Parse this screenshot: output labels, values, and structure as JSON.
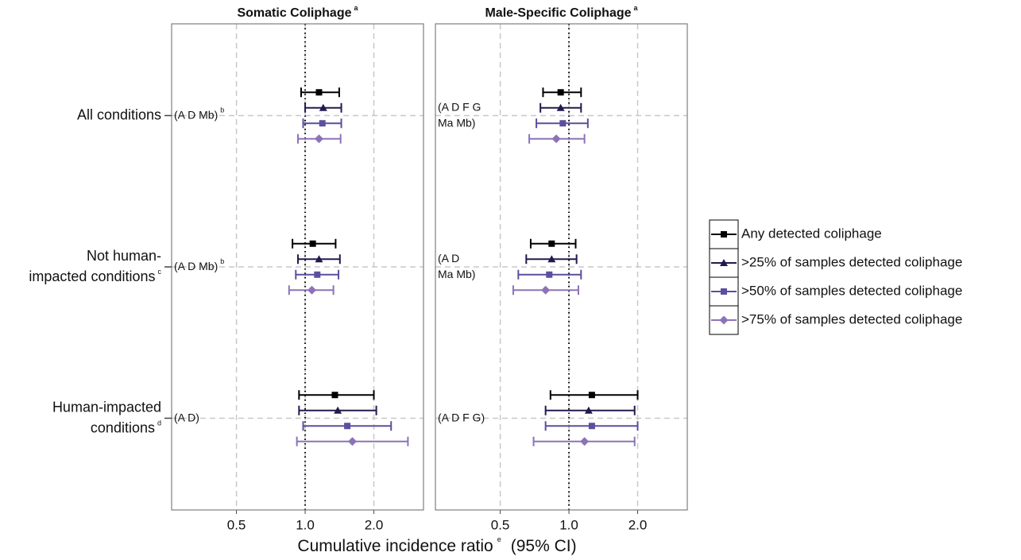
{
  "chart_data": {
    "type": "forest",
    "xscale": "log",
    "xlim": [
      0.26,
      3.3
    ],
    "xticks": [
      0.5,
      {
        "value": 1,
        "label": "1.0"
      },
      {
        "value": 2,
        "label": "2.0"
      }
    ],
    "refline": 1,
    "grid": true,
    "xlabel": "Cumulative incidence ratio",
    "xlabel_sup": "e",
    "xlabel_suffix": "(95% CI)",
    "legend_position": "right",
    "categories": [
      {
        "lines": [
          "All conditions"
        ]
      },
      {
        "lines": [
          "Not human-",
          "impacted conditions"
        ],
        "sup": "c"
      },
      {
        "lines": [
          "Human-impacted",
          "conditions"
        ],
        "sup": "d"
      }
    ],
    "legend": [
      {
        "name": "Any detected coliphage",
        "color": "#000000",
        "marker": "square"
      },
      {
        "name": ">25% of samples detected coliphage",
        "color": "#231a4e",
        "marker": "triangle"
      },
      {
        "name": ">50% of samples detected coliphage",
        "color": "#5b4f9e",
        "marker": "square"
      },
      {
        "name": ">75% of samples detected coliphage",
        "color": "#8c73b8",
        "marker": "diamond"
      }
    ],
    "panels": [
      {
        "title": "Somatic Coliphage",
        "title_sup": "a",
        "annotations": [
          {
            "lines": [
              "(A D Mb)"
            ],
            "sup": "b"
          },
          {
            "lines": [
              "(A D Mb)"
            ],
            "sup": "b"
          },
          {
            "lines": [
              "(A D)"
            ]
          }
        ],
        "series": [
          {
            "values": [
              1.15,
              1.08,
              1.35
            ],
            "lower": [
              0.96,
              0.88,
              0.94
            ],
            "upper": [
              1.41,
              1.36,
              2.0
            ]
          },
          {
            "values": [
              1.2,
              1.15,
              1.39
            ],
            "lower": [
              1.0,
              0.93,
              0.94
            ],
            "upper": [
              1.44,
              1.42,
              2.05
            ]
          },
          {
            "values": [
              1.19,
              1.13,
              1.53
            ],
            "lower": [
              0.98,
              0.91,
              0.98
            ],
            "upper": [
              1.44,
              1.4,
              2.38
            ]
          },
          {
            "values": [
              1.15,
              1.07,
              1.61
            ],
            "lower": [
              0.93,
              0.85,
              0.92
            ],
            "upper": [
              1.43,
              1.33,
              2.82
            ]
          }
        ]
      },
      {
        "title": "Male-Specific Coliphage",
        "title_sup": "a",
        "annotations": [
          {
            "lines": [
              "(A D F G",
              "Ma Mb)"
            ]
          },
          {
            "lines": [
              "(A D",
              "Ma Mb)"
            ]
          },
          {
            "lines": [
              "(A D F G)"
            ]
          }
        ],
        "series": [
          {
            "values": [
              0.92,
              0.84,
              1.26
            ],
            "lower": [
              0.77,
              0.68,
              0.83
            ],
            "upper": [
              1.13,
              1.07,
              2.0
            ]
          },
          {
            "values": [
              0.92,
              0.84,
              1.22
            ],
            "lower": [
              0.75,
              0.65,
              0.79
            ],
            "upper": [
              1.13,
              1.08,
              1.94
            ]
          },
          {
            "values": [
              0.94,
              0.82,
              1.26
            ],
            "lower": [
              0.72,
              0.6,
              0.79
            ],
            "upper": [
              1.21,
              1.13,
              2.0
            ]
          },
          {
            "values": [
              0.88,
              0.79,
              1.17
            ],
            "lower": [
              0.67,
              0.57,
              0.7
            ],
            "upper": [
              1.17,
              1.1,
              1.94
            ]
          }
        ]
      }
    ]
  }
}
